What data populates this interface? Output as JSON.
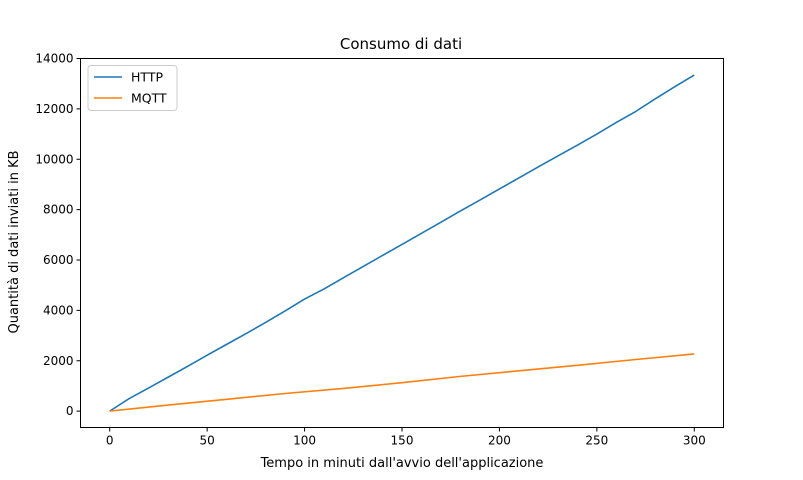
{
  "chart_data": {
    "type": "line",
    "title": "Consumo di dati",
    "xlabel": "Tempo in minuti dall'avvio dell'applicazione",
    "ylabel": "Quantità di dati inviati in KB",
    "xlim": [
      -15,
      315
    ],
    "ylim": [
      -650,
      14000
    ],
    "xticks": [
      0,
      50,
      100,
      150,
      200,
      250,
      300
    ],
    "yticks": [
      0,
      2000,
      4000,
      6000,
      8000,
      10000,
      12000,
      14000
    ],
    "grid": false,
    "legend_position": "upper-left",
    "series": [
      {
        "name": "HTTP",
        "color": "#1f77b4",
        "x": [
          0,
          10,
          20,
          30,
          40,
          50,
          60,
          70,
          80,
          90,
          100,
          110,
          120,
          130,
          140,
          150,
          160,
          170,
          180,
          190,
          200,
          210,
          220,
          230,
          240,
          250,
          260,
          270,
          280,
          290,
          300
        ],
        "y": [
          0,
          500,
          920,
          1350,
          1780,
          2220,
          2650,
          3080,
          3520,
          3980,
          4450,
          4850,
          5300,
          5740,
          6180,
          6620,
          7060,
          7500,
          7950,
          8380,
          8820,
          9260,
          9700,
          10130,
          10560,
          11000,
          11460,
          11900,
          12400,
          12880,
          13340
        ]
      },
      {
        "name": "MQTT",
        "color": "#ff7f0e",
        "x": [
          0,
          30,
          60,
          90,
          120,
          150,
          180,
          210,
          240,
          270,
          300
        ],
        "y": [
          0,
          240,
          470,
          700,
          900,
          1130,
          1380,
          1600,
          1820,
          2050,
          2270
        ]
      }
    ]
  }
}
